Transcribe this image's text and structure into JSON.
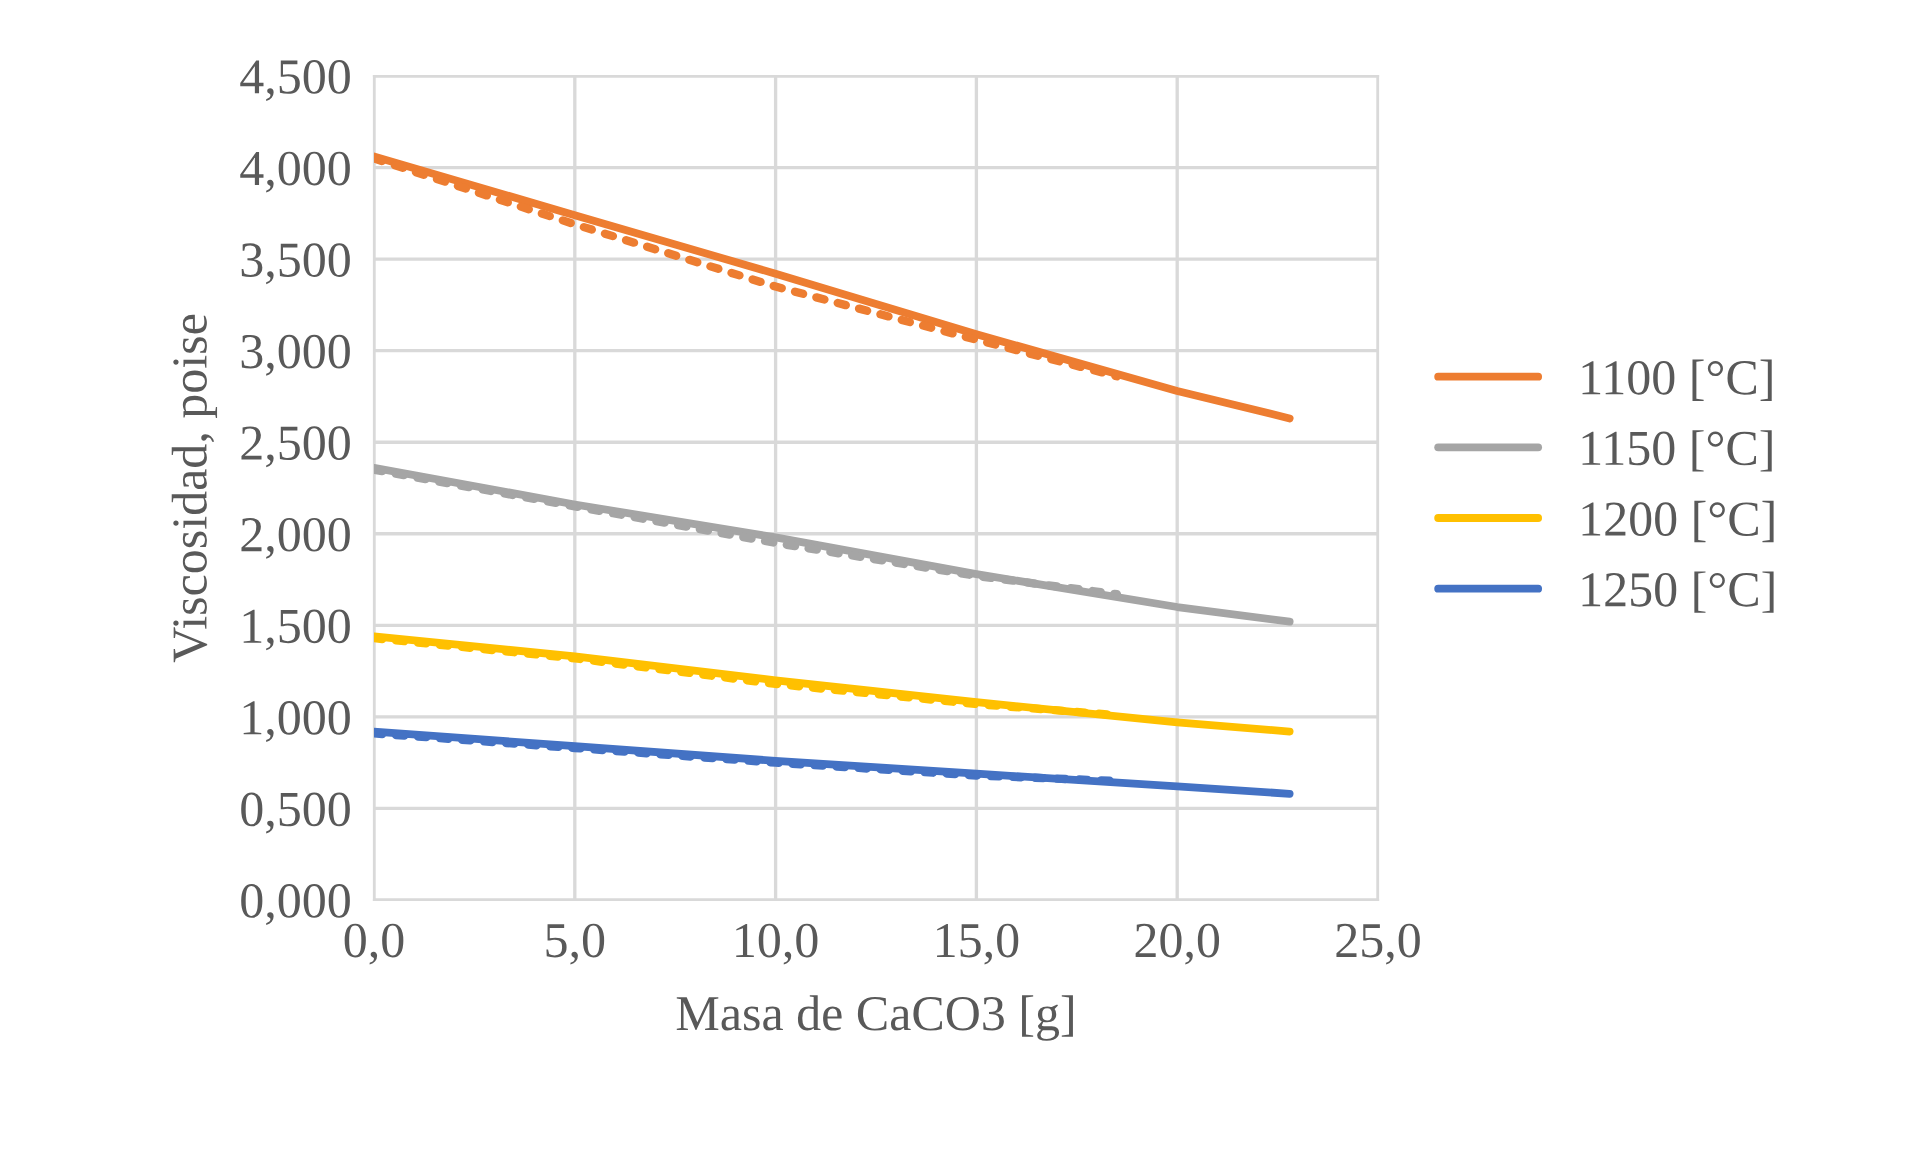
{
  "chart_data": {
    "type": "line",
    "xlabel": "Masa de CaCO3 [g]",
    "ylabel": "Viscosidad, poise",
    "xlim": [
      0,
      25
    ],
    "xticks": [
      {
        "value": 0,
        "label": "0,0"
      },
      {
        "value": 5,
        "label": "5,0"
      },
      {
        "value": 10,
        "label": "10,0"
      },
      {
        "value": 15,
        "label": "15,0"
      },
      {
        "value": 20,
        "label": "20,0"
      },
      {
        "value": 25,
        "label": "25,0"
      }
    ],
    "ylim": [
      0,
      4.5
    ],
    "yticks": [
      {
        "value": 0,
        "label": "0,000"
      },
      {
        "value": 0.5,
        "label": "0,500"
      },
      {
        "value": 1,
        "label": "1,000"
      },
      {
        "value": 1.5,
        "label": "1,500"
      },
      {
        "value": 2,
        "label": "2,000"
      },
      {
        "value": 2.5,
        "label": "2,500"
      },
      {
        "value": 3,
        "label": "3,000"
      },
      {
        "value": 3.5,
        "label": "3,500"
      },
      {
        "value": 4,
        "label": "4,000"
      },
      {
        "value": 4.5,
        "label": "4,500"
      }
    ],
    "grid": true,
    "legend": "right",
    "marker": "none",
    "series": [
      {
        "name": "1100 [°C]",
        "color": "#ed7d31",
        "x": [
          0,
          5,
          10,
          15,
          20,
          22.8
        ],
        "values": [
          4.06,
          3.74,
          3.42,
          3.09,
          2.78,
          2.63
        ]
      },
      {
        "name": "1150 [°C]",
        "color": "#a5a5a5",
        "x": [
          0,
          5,
          10,
          15,
          20,
          22.8
        ],
        "values": [
          2.36,
          2.16,
          1.98,
          1.78,
          1.6,
          1.52
        ]
      },
      {
        "name": "1200 [°C]",
        "color": "#ffc000",
        "x": [
          0,
          5,
          10,
          15,
          20,
          22.8
        ],
        "values": [
          1.44,
          1.33,
          1.2,
          1.08,
          0.97,
          0.92
        ]
      },
      {
        "name": "1250 [°C]",
        "color": "#4472c4",
        "x": [
          0,
          5,
          10,
          15,
          20,
          22.8
        ],
        "values": [
          0.92,
          0.84,
          0.76,
          0.69,
          0.62,
          0.58
        ]
      },
      {
        "color": "#ed7d31",
        "line_style": "dotted",
        "x": [
          0,
          5,
          10,
          15,
          18.5
        ],
        "values": [
          4.05,
          3.69,
          3.35,
          3.06,
          2.86
        ]
      },
      {
        "color": "#a5a5a5",
        "line_style": "dotted",
        "x": [
          0,
          5,
          10,
          15,
          18.5
        ],
        "values": [
          2.35,
          2.15,
          1.95,
          1.77,
          1.67
        ]
      },
      {
        "color": "#ffc000",
        "line_style": "dotted",
        "x": [
          0,
          5,
          10,
          15,
          18.5
        ],
        "values": [
          1.43,
          1.32,
          1.18,
          1.07,
          1.01
        ]
      },
      {
        "color": "#4472c4",
        "line_style": "dotted",
        "x": [
          0,
          5,
          10,
          15,
          18.5
        ],
        "values": [
          0.91,
          0.83,
          0.75,
          0.68,
          0.65
        ]
      }
    ]
  }
}
